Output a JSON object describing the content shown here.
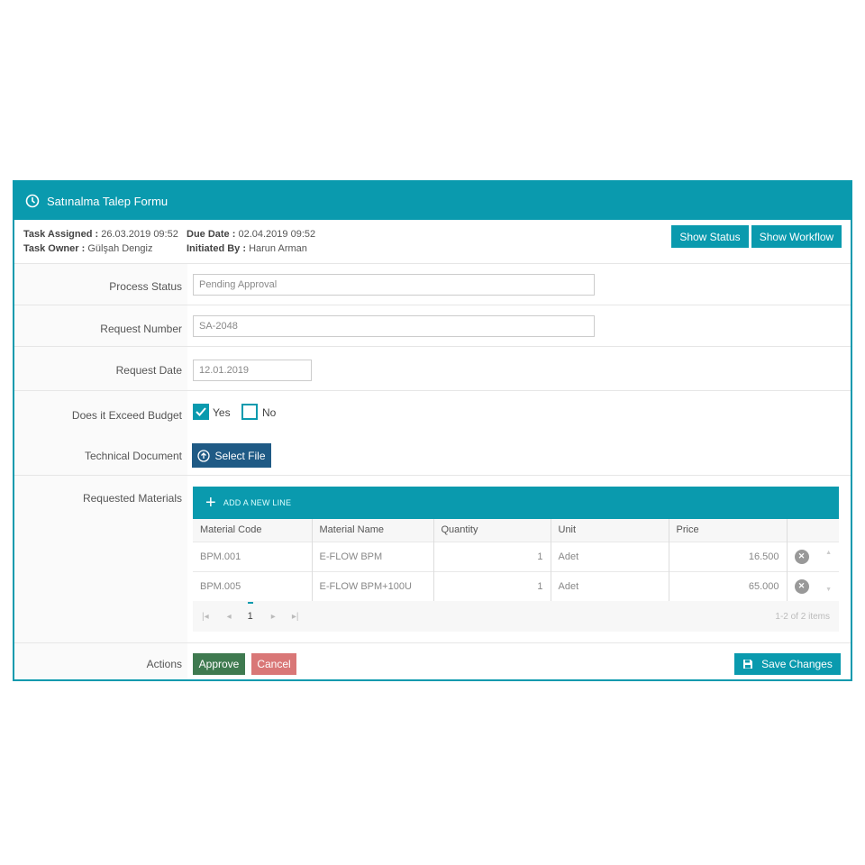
{
  "header": {
    "title": "Satınalma Talep Formu"
  },
  "info": {
    "task_assigned_label": "Task Assigned :",
    "task_assigned": "26.03.2019 09:52",
    "task_owner_label": "Task Owner :",
    "task_owner": "Gülşah Dengiz",
    "due_date_label": "Due Date :",
    "due_date": "02.04.2019 09:52",
    "initiated_by_label": "Initiated By :",
    "initiated_by": "Harun Arman"
  },
  "buttons": {
    "show_status": "Show Status",
    "show_workflow": "Show Workflow",
    "select_file": "Select File",
    "approve": "Approve",
    "cancel": "Cancel",
    "save": "Save Changes"
  },
  "form": {
    "process_status_label": "Process Status",
    "process_status": "Pending Approval",
    "request_number_label": "Request Number",
    "request_number": "SA-2048",
    "request_date_label": "Request Date",
    "request_date": "12.01.2019",
    "budget_label": "Does it Exceed Budget",
    "yes": "Yes",
    "no": "No",
    "yes_checked": true,
    "no_checked": false,
    "tech_doc_label": "Technical Document",
    "materials_label": "Requested Materials",
    "actions_label": "Actions"
  },
  "grid": {
    "add_line": "ADD A NEW LINE",
    "columns": [
      "Material Code",
      "Material Name",
      "Quantity",
      "Unit",
      "Price"
    ],
    "rows": [
      {
        "code": "BPM.001",
        "name": "E-FLOW BPM",
        "qty": "1",
        "unit": "Adet",
        "price": "16.500"
      },
      {
        "code": "BPM.005",
        "name": "E-FLOW BPM+100U",
        "qty": "1",
        "unit": "Adet",
        "price": "65.000"
      }
    ],
    "page": "1",
    "summary": "1-2 of 2 items"
  },
  "colors": {
    "accent": "#0a9aae",
    "select_file": "#1f5a85",
    "approve": "#3f7a50",
    "cancel": "#d97777"
  }
}
